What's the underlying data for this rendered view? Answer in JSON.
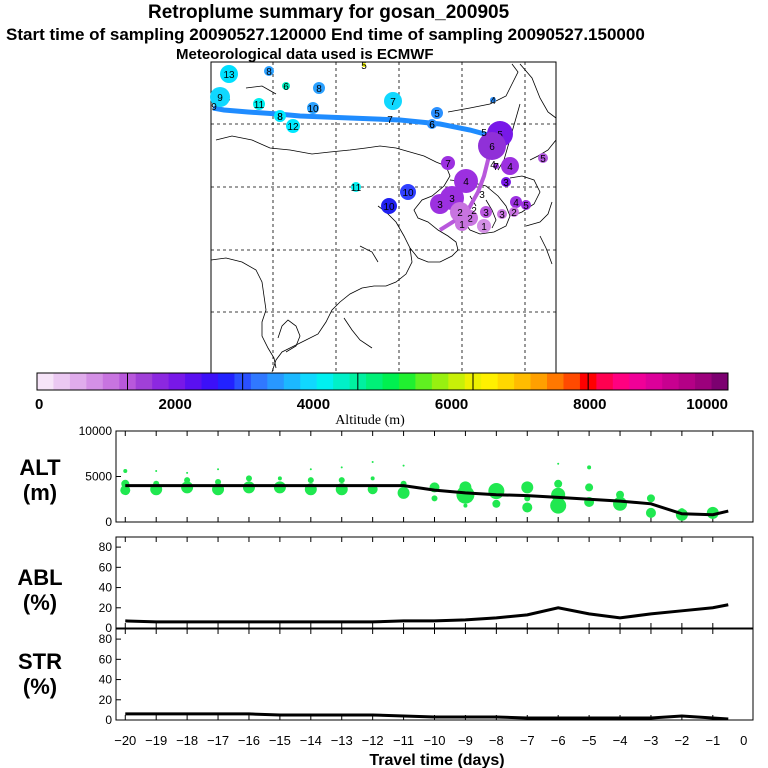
{
  "header": {
    "title": "Retroplume summary for gosan_200905",
    "subtitle": "Start time of sampling 20090527.120000     End time of sampling 20090527.150000",
    "met": "Meteorological data used is ECMWF"
  },
  "colorbar": {
    "colors": [
      "#f6e4f8",
      "#ebc8f2",
      "#e0acec",
      "#d490e6",
      "#c874e0",
      "#b858dc",
      "#a040d8",
      "#8c28e0",
      "#7818e8",
      "#5a10f0",
      "#3c10f8",
      "#2222ff",
      "#2a50ff",
      "#3078ff",
      "#2898ff",
      "#1cb8ff",
      "#10d8ff",
      "#00f0f0",
      "#00f0c8",
      "#00f0a0",
      "#00f078",
      "#00f050",
      "#20f030",
      "#60f020",
      "#98f010",
      "#c8f008",
      "#eef000",
      "#fff000",
      "#ffd800",
      "#ffbc00",
      "#ffa000",
      "#ff7800",
      "#ff4a00",
      "#ff0000",
      "#ff0050",
      "#ff0080",
      "#f00098",
      "#dc009a",
      "#c80090",
      "#b40086",
      "#9c007c",
      "#7c0070"
    ],
    "labels": [
      "0",
      "2000",
      "4000",
      "6000",
      "8000",
      "10000"
    ],
    "axis_label": "Altitude (m)"
  },
  "map": {
    "points": [
      {
        "label": "13",
        "color": "#00e0ff",
        "size": 9
      },
      {
        "label": "8",
        "color": "#2aa0ff",
        "size": 5
      },
      {
        "label": "6",
        "color": "#00f0c0",
        "size": 4
      },
      {
        "label": "8",
        "color": "#2aa0ff",
        "size": 6
      },
      {
        "label": "5",
        "color": "#eef000",
        "size": 2
      },
      {
        "label": "7",
        "color": "#10d8ff",
        "size": 8
      },
      {
        "label": "9",
        "color": "#10d8ff",
        "size": 10
      },
      {
        "label": "11",
        "color": "#00f0f0",
        "size": 6
      },
      {
        "label": "8",
        "color": "#00e8ff",
        "size": 6
      },
      {
        "label": "10",
        "color": "#2aa0ff",
        "size": 6
      },
      {
        "label": "12",
        "color": "#00e8ff",
        "size": 7
      },
      {
        "label": "7",
        "color": "#10d8ff",
        "size": 9
      },
      {
        "label": "5",
        "color": "#2a90ff",
        "size": 6
      },
      {
        "label": "4",
        "color": "#2a90ff",
        "size": 3
      },
      {
        "label": "6",
        "color": "#2a90ff",
        "size": 5
      },
      {
        "label": "5",
        "color": "#7818e8",
        "size": 13
      },
      {
        "label": "6",
        "color": "#9030d8",
        "size": 14
      },
      {
        "label": "5",
        "color": "#b058dc",
        "size": 5
      },
      {
        "label": "7",
        "color": "#9c30e0",
        "size": 7
      },
      {
        "label": "4",
        "color": "#9c30e0",
        "size": 9
      },
      {
        "label": "4",
        "color": "#9c30e0",
        "size": 12
      },
      {
        "label": "3",
        "color": "#7818e8",
        "size": 5
      },
      {
        "label": "11",
        "color": "#00f0f0",
        "size": 5
      },
      {
        "label": "10",
        "color": "#3040ff",
        "size": 8
      },
      {
        "label": "10",
        "color": "#2020f0",
        "size": 8
      },
      {
        "label": "3",
        "color": "#9c30e0",
        "size": 12
      },
      {
        "label": "3",
        "color": "#9c30e0",
        "size": 10
      },
      {
        "label": "2",
        "color": "#c874e0",
        "size": 10
      },
      {
        "label": "2",
        "color": "#c874e0",
        "size": 8
      },
      {
        "label": "3",
        "color": "#b858dc",
        "size": 6
      },
      {
        "label": "1",
        "color": "#d490e6",
        "size": 7
      },
      {
        "label": "1",
        "color": "#c874e0",
        "size": 7
      },
      {
        "label": "4",
        "color": "#9c30e0",
        "size": 6
      },
      {
        "label": "5",
        "color": "#9c30e0",
        "size": 5
      },
      {
        "label": "3",
        "color": "#c874e0",
        "size": 5
      },
      {
        "label": "2",
        "color": "#c874e0",
        "size": 5
      },
      {
        "label": "7",
        "color": "#9c30e0",
        "size": 3
      }
    ],
    "track_labels": [
      {
        "label": "9"
      },
      {
        "label": "8"
      },
      {
        "label": "7"
      },
      {
        "label": "6"
      },
      {
        "label": "5"
      },
      {
        "label": "4"
      },
      {
        "label": "3"
      },
      {
        "label": "2"
      }
    ]
  },
  "chart_data": [
    {
      "type": "line",
      "panel": "ALT",
      "ylabel": "ALT\n(m)",
      "ylim": [
        0,
        10000
      ],
      "yticks": [
        "0",
        "5000",
        "10000"
      ],
      "x": [
        -20,
        -19,
        -18,
        -17,
        -16,
        -15,
        -14,
        -13,
        -12,
        -11,
        -10,
        -9,
        -8,
        -7,
        -6,
        -5,
        -4,
        -3,
        -2,
        -1,
        -0.5
      ],
      "values": [
        4000,
        4000,
        4000,
        4000,
        4000,
        4000,
        4000,
        4000,
        4000,
        4000,
        3500,
        3200,
        3000,
        2900,
        2700,
        2500,
        2300,
        2000,
        900,
        800,
        1200
      ],
      "series_color": "#000000",
      "scatter": [
        {
          "x": -20,
          "y": 3500,
          "r": 5
        },
        {
          "x": -20,
          "y": 4200,
          "r": 4
        },
        {
          "x": -20,
          "y": 5600,
          "r": 2
        },
        {
          "x": -19,
          "y": 3600,
          "r": 6
        },
        {
          "x": -19,
          "y": 4200,
          "r": 3
        },
        {
          "x": -19,
          "y": 5600,
          "r": 1
        },
        {
          "x": -18,
          "y": 3800,
          "r": 6
        },
        {
          "x": -18,
          "y": 4600,
          "r": 3
        },
        {
          "x": -18,
          "y": 5400,
          "r": 1
        },
        {
          "x": -17,
          "y": 3600,
          "r": 6
        },
        {
          "x": -17,
          "y": 4400,
          "r": 3
        },
        {
          "x": -17,
          "y": 5800,
          "r": 1
        },
        {
          "x": -16,
          "y": 3800,
          "r": 6
        },
        {
          "x": -16,
          "y": 4800,
          "r": 3
        },
        {
          "x": -15,
          "y": 3800,
          "r": 6
        },
        {
          "x": -15,
          "y": 4800,
          "r": 2
        },
        {
          "x": -14,
          "y": 3600,
          "r": 6
        },
        {
          "x": -14,
          "y": 4600,
          "r": 3
        },
        {
          "x": -14,
          "y": 5800,
          "r": 1
        },
        {
          "x": -13,
          "y": 3600,
          "r": 6
        },
        {
          "x": -13,
          "y": 4600,
          "r": 3
        },
        {
          "x": -13,
          "y": 6000,
          "r": 1
        },
        {
          "x": -12,
          "y": 3600,
          "r": 5
        },
        {
          "x": -12,
          "y": 4800,
          "r": 2
        },
        {
          "x": -12,
          "y": 6600,
          "r": 1
        },
        {
          "x": -11,
          "y": 3200,
          "r": 6
        },
        {
          "x": -11,
          "y": 4200,
          "r": 3
        },
        {
          "x": -11,
          "y": 6200,
          "r": 1
        },
        {
          "x": -10,
          "y": 3800,
          "r": 5
        },
        {
          "x": -10,
          "y": 2600,
          "r": 3
        },
        {
          "x": -9,
          "y": 3800,
          "r": 6
        },
        {
          "x": -9,
          "y": 3000,
          "r": 9
        },
        {
          "x": -9,
          "y": 1800,
          "r": 2
        },
        {
          "x": -8,
          "y": 3400,
          "r": 8
        },
        {
          "x": -8,
          "y": 2000,
          "r": 4
        },
        {
          "x": -7,
          "y": 3800,
          "r": 6
        },
        {
          "x": -7,
          "y": 1600,
          "r": 5
        },
        {
          "x": -7,
          "y": 2600,
          "r": 3
        },
        {
          "x": -6,
          "y": 4200,
          "r": 4
        },
        {
          "x": -6,
          "y": 3000,
          "r": 7
        },
        {
          "x": -6,
          "y": 1800,
          "r": 8
        },
        {
          "x": -6,
          "y": 6400,
          "r": 1
        },
        {
          "x": -5,
          "y": 3800,
          "r": 4
        },
        {
          "x": -5,
          "y": 2200,
          "r": 5
        },
        {
          "x": -5,
          "y": 6000,
          "r": 2
        },
        {
          "x": -4,
          "y": 2000,
          "r": 7
        },
        {
          "x": -4,
          "y": 3000,
          "r": 4
        },
        {
          "x": -3,
          "y": 1000,
          "r": 5
        },
        {
          "x": -3,
          "y": 2600,
          "r": 4
        },
        {
          "x": -2,
          "y": 800,
          "r": 6
        },
        {
          "x": -2,
          "y": 1200,
          "r": 3
        },
        {
          "x": -1,
          "y": 1000,
          "r": 6
        }
      ]
    },
    {
      "type": "line",
      "panel": "ABL",
      "ylabel": "ABL\n(%)",
      "ylim": [
        0,
        90
      ],
      "yticks": [
        "0",
        "20",
        "40",
        "60",
        "80"
      ],
      "x": [
        -20,
        -19,
        -18,
        -17,
        -16,
        -15,
        -14,
        -13,
        -12,
        -11,
        -10,
        -9,
        -8,
        -7,
        -6,
        -5,
        -4,
        -3,
        -2,
        -1,
        -0.5
      ],
      "values": [
        7,
        6,
        6,
        6,
        6,
        6,
        6,
        6,
        6,
        7,
        7,
        8,
        10,
        13,
        20,
        14,
        10,
        14,
        17,
        20,
        23
      ],
      "series_color": "#000000"
    },
    {
      "type": "line",
      "panel": "STR",
      "ylabel": "STR\n(%)",
      "ylim": [
        0,
        90
      ],
      "yticks": [
        "0",
        "20",
        "40",
        "60",
        "80"
      ],
      "x": [
        -20,
        -19,
        -18,
        -17,
        -16,
        -15,
        -14,
        -13,
        -12,
        -11,
        -10,
        -9,
        -8,
        -7,
        -6,
        -5,
        -4,
        -3,
        -2,
        -1,
        -0.5
      ],
      "values": [
        6,
        6,
        6,
        6,
        6,
        5,
        5,
        5,
        5,
        4,
        3,
        3,
        3,
        2,
        2,
        2,
        2,
        2,
        4,
        2,
        1
      ],
      "series_color": "#000000",
      "xlabel": "Travel time (days)",
      "xticks": [
        "−20",
        "−19",
        "−18",
        "−17",
        "−16",
        "−15",
        "−14",
        "−13",
        "−12",
        "−11",
        "−10",
        "−9",
        "−8",
        "−7",
        "−6",
        "−5",
        "−4",
        "−3",
        "−2",
        "−1",
        "0"
      ]
    }
  ]
}
